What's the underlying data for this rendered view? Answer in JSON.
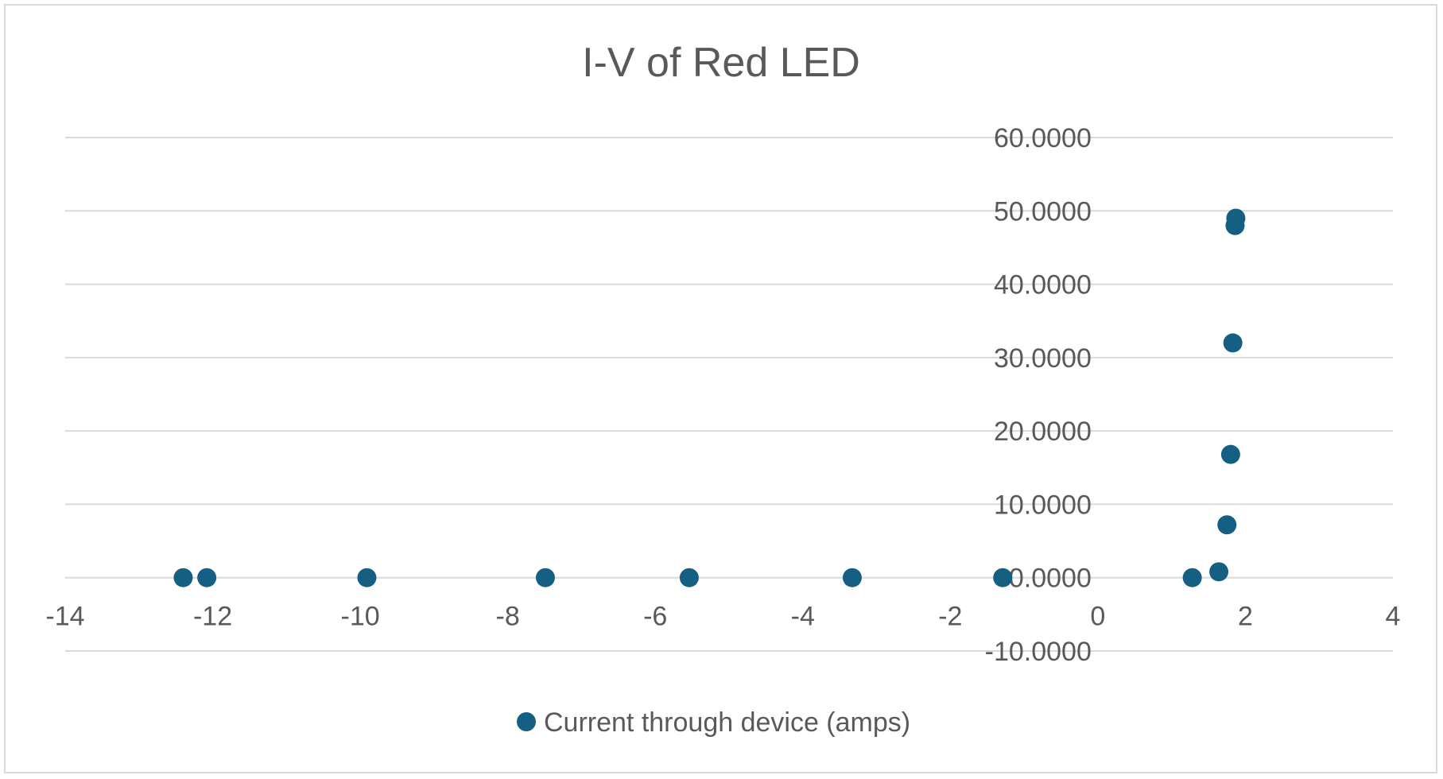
{
  "chart_data": {
    "type": "scatter",
    "title": "I-V of Red LED",
    "xlabel": "",
    "ylabel": "",
    "xlim": [
      -14,
      4
    ],
    "ylim": [
      -10,
      60
    ],
    "x_ticks": [
      -14,
      -12,
      -10,
      -8,
      -6,
      -4,
      -2,
      0,
      2,
      4
    ],
    "x_tick_labels": [
      "-14",
      "-12",
      "-10",
      "-8",
      "-6",
      "-4",
      "-2",
      "0",
      "2",
      "4"
    ],
    "y_ticks": [
      -10,
      0,
      10,
      20,
      30,
      40,
      50,
      60
    ],
    "y_tick_labels": [
      "-10.0000",
      "0.0000",
      "10.0000",
      "20.0000",
      "30.0000",
      "40.0000",
      "50.0000",
      "60.0000"
    ],
    "grid": "horizontal",
    "legend_position": "bottom",
    "series": [
      {
        "name": "Current through device (amps)",
        "color": "#156082",
        "x": [
          -12.4,
          -12.08,
          -9.91,
          -7.49,
          -5.54,
          -3.33,
          -1.29,
          1.28,
          1.64,
          1.75,
          1.8,
          1.83,
          1.86,
          1.87
        ],
        "y": [
          0.0,
          0.0,
          0.0,
          0.0,
          0.0,
          0.0,
          0.0,
          0.0,
          0.8,
          7.2,
          16.8,
          32.0,
          48.0,
          49.0
        ]
      }
    ]
  }
}
